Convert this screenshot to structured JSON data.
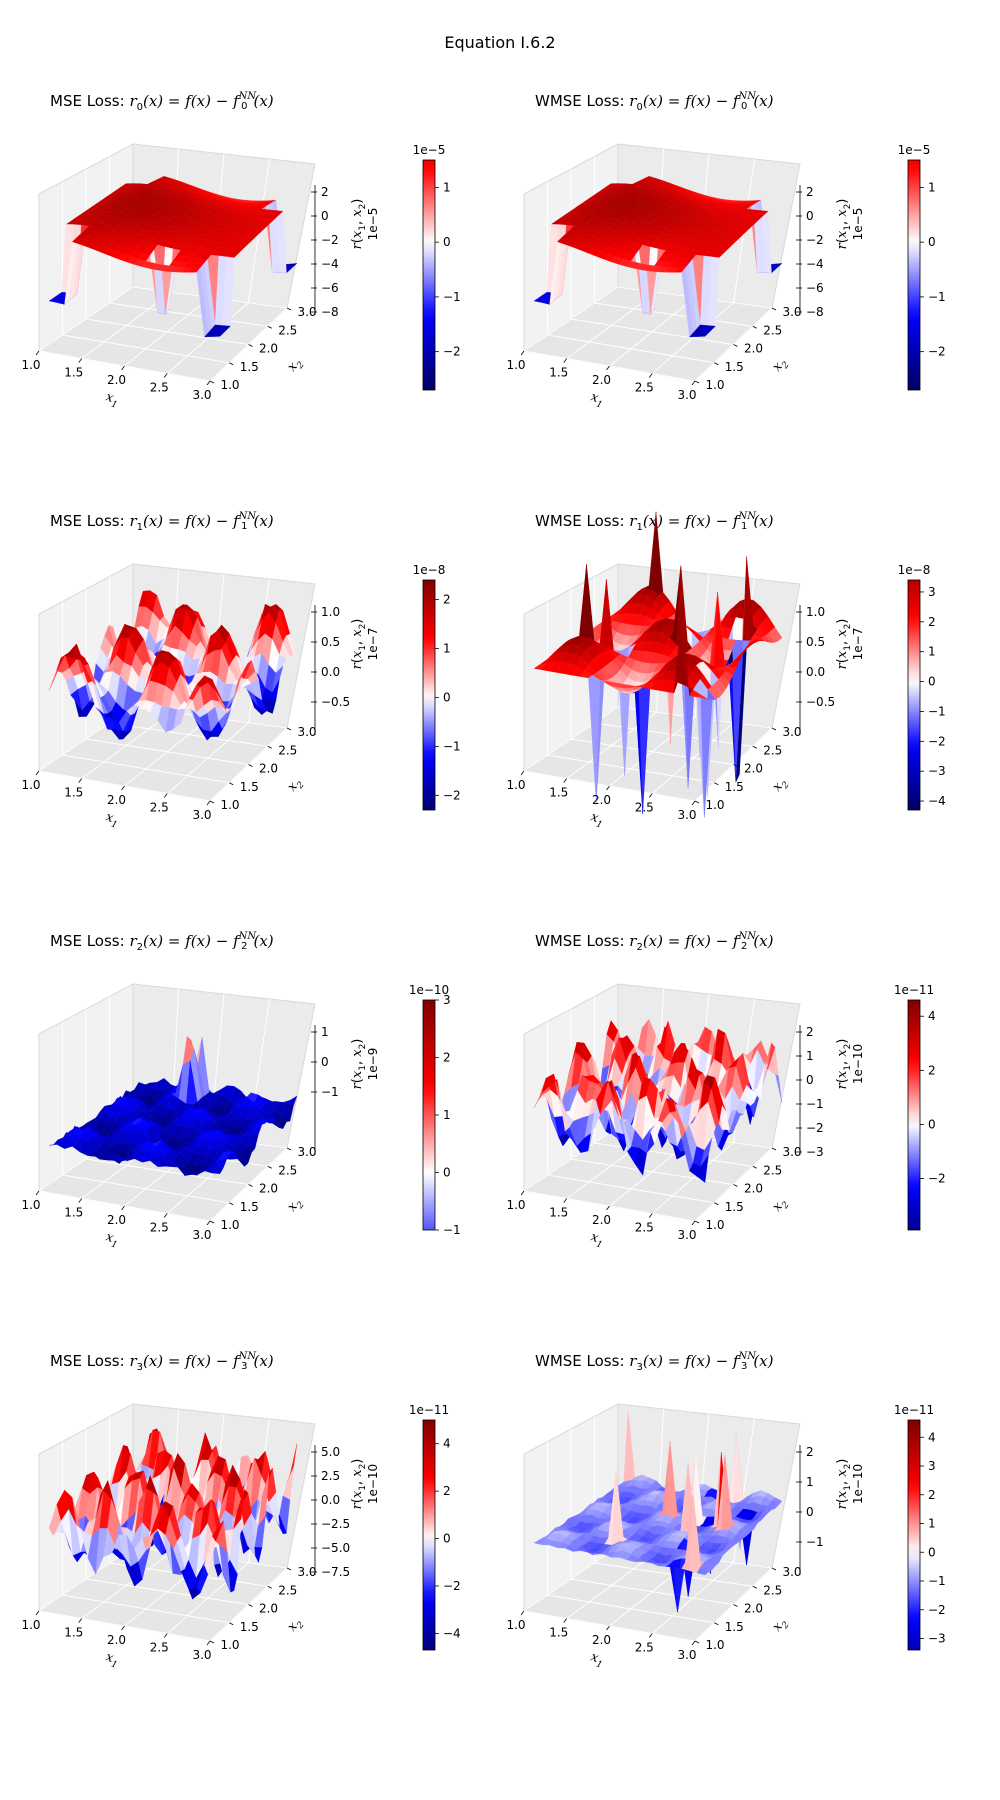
{
  "figure": {
    "title": "Equation I.6.2"
  },
  "chart_data": [
    {
      "type": "surface",
      "title": {
        "loss": "MSE Loss: ",
        "fn": "r",
        "sub": "0",
        "body": "(x) = f(x) − f",
        "supNN": "NN",
        "subNN": "0",
        "tail": "(x)"
      },
      "xlabel": "x1",
      "ylabel": "x2",
      "zlabel": "r(x1, x2)",
      "xlim": [
        1.0,
        3.0
      ],
      "ylim": [
        1.0,
        3.0
      ],
      "x_ticks": [
        "1.0",
        "1.5",
        "2.0",
        "2.5",
        "3.0"
      ],
      "y_ticks": [
        "1.0",
        "1.5",
        "2.0",
        "2.5",
        "3.0"
      ],
      "z_ticks": [
        "2",
        "0",
        "−2",
        "−4",
        "−6",
        "−8"
      ],
      "z_offset": "1e−5",
      "colorbar": {
        "offset": "1e−5",
        "ticks": [
          "1",
          "0",
          "−1",
          "−2"
        ],
        "range": [
          -2.7,
          1.5
        ],
        "tick_values": [
          1,
          0,
          -1,
          -2
        ],
        "colormap": "seismic"
      },
      "surface": "mostly-positive red undulating surface with blue dips at corners"
    },
    {
      "type": "surface",
      "title": {
        "loss": "WMSE Loss: ",
        "fn": "r",
        "sub": "0",
        "body": "(x) = f(x) − f",
        "supNN": "NN",
        "subNN": "0",
        "tail": "(x)"
      },
      "xlabel": "x1",
      "ylabel": "x2",
      "zlabel": "r(x1, x2)",
      "xlim": [
        1.0,
        3.0
      ],
      "ylim": [
        1.0,
        3.0
      ],
      "x_ticks": [
        "1.0",
        "1.5",
        "2.0",
        "2.5",
        "3.0"
      ],
      "y_ticks": [
        "1.0",
        "1.5",
        "2.0",
        "2.5",
        "3.0"
      ],
      "z_ticks": [
        "2",
        "0",
        "−2",
        "−4",
        "−6",
        "−8"
      ],
      "z_offset": "1e−5",
      "colorbar": {
        "offset": "1e−5",
        "ticks": [
          "1",
          "0",
          "−1",
          "−2"
        ],
        "range": [
          -2.7,
          1.5
        ],
        "tick_values": [
          1,
          0,
          -1,
          -2
        ],
        "colormap": "seismic"
      },
      "surface": "mostly-positive red undulating surface with blue dips at corners"
    },
    {
      "type": "surface",
      "title": {
        "loss": "MSE Loss: ",
        "fn": "r",
        "sub": "1",
        "body": "(x) = f(x) − f",
        "supNN": "NN",
        "subNN": "1",
        "tail": "(x)"
      },
      "xlabel": "x1",
      "ylabel": "x2",
      "zlabel": "r(x1, x2)",
      "xlim": [
        1.0,
        3.0
      ],
      "ylim": [
        1.0,
        3.0
      ],
      "x_ticks": [
        "1.0",
        "1.5",
        "2.0",
        "2.5",
        "3.0"
      ],
      "y_ticks": [
        "1.0",
        "1.5",
        "2.0",
        "2.5",
        "3.0"
      ],
      "z_ticks": [
        "1.0",
        "0.5",
        "0.0",
        "−0.5"
      ],
      "z_offset": "1e−7",
      "colorbar": {
        "offset": "1e−8",
        "ticks": [
          "2",
          "1",
          "0",
          "−1",
          "−2"
        ],
        "range": [
          -2.3,
          2.4
        ],
        "tick_values": [
          2,
          1,
          0,
          -1,
          -2
        ],
        "colormap": "seismic"
      },
      "surface": "mixed red/blue oscillating surface"
    },
    {
      "type": "surface",
      "title": {
        "loss": "WMSE Loss: ",
        "fn": "r",
        "sub": "1",
        "body": "(x) = f(x) − f",
        "supNN": "NN",
        "subNN": "1",
        "tail": "(x)"
      },
      "xlabel": "x1",
      "ylabel": "x2",
      "zlabel": "r(x1, x2)",
      "xlim": [
        1.0,
        3.0
      ],
      "ylim": [
        1.0,
        3.0
      ],
      "x_ticks": [
        "1.0",
        "1.5",
        "2.0",
        "2.5",
        "3.0"
      ],
      "y_ticks": [
        "1.0",
        "1.5",
        "2.0",
        "2.5",
        "3.0"
      ],
      "z_ticks": [
        "1.0",
        "0.5",
        "0.0",
        "−0.5"
      ],
      "z_offset": "1e−7",
      "colorbar": {
        "offset": "1e−8",
        "ticks": [
          "3",
          "2",
          "1",
          "0",
          "−1",
          "−2",
          "−3",
          "−4"
        ],
        "range": [
          -4.3,
          3.4
        ],
        "tick_values": [
          3,
          2,
          1,
          0,
          -1,
          -2,
          -3,
          -4
        ],
        "colormap": "seismic"
      },
      "surface": "mostly red surface with sharp spikes"
    },
    {
      "type": "surface",
      "title": {
        "loss": "MSE Loss: ",
        "fn": "r",
        "sub": "2",
        "body": "(x) = f(x) − f",
        "supNN": "NN",
        "subNN": "2",
        "tail": "(x)"
      },
      "xlabel": "x1",
      "ylabel": "x2",
      "zlabel": "r(x1, x2)",
      "xlim": [
        1.0,
        3.0
      ],
      "ylim": [
        1.0,
        3.0
      ],
      "x_ticks": [
        "1.0",
        "1.5",
        "2.0",
        "2.5",
        "3.0"
      ],
      "y_ticks": [
        "1.0",
        "1.5",
        "2.0",
        "2.5",
        "3.0"
      ],
      "z_ticks": [
        "1",
        "0",
        "−1"
      ],
      "z_offset": "1e−9",
      "colorbar": {
        "offset": "1e−10",
        "ticks": [
          "3",
          "2",
          "1",
          "0",
          "−1"
        ],
        "range": [
          -1.0,
          3.0
        ],
        "tick_values": [
          3,
          2,
          1,
          0,
          -1
        ],
        "colormap": "seismic"
      },
      "surface": "uniformly blue rough surface"
    },
    {
      "type": "surface",
      "title": {
        "loss": "WMSE Loss: ",
        "fn": "r",
        "sub": "2",
        "body": "(x) = f(x) − f",
        "supNN": "NN",
        "subNN": "2",
        "tail": "(x)"
      },
      "xlabel": "x1",
      "ylabel": "x2",
      "zlabel": "r(x1, x2)",
      "xlim": [
        1.0,
        3.0
      ],
      "ylim": [
        1.0,
        3.0
      ],
      "x_ticks": [
        "1.0",
        "1.5",
        "2.0",
        "2.5",
        "3.0"
      ],
      "y_ticks": [
        "1.0",
        "1.5",
        "2.0",
        "2.5",
        "3.0"
      ],
      "z_ticks": [
        "2",
        "1",
        "0",
        "−1",
        "−2",
        "−3"
      ],
      "z_offset": "1e−10",
      "colorbar": {
        "offset": "1e−11",
        "ticks": [
          "4",
          "2",
          "0",
          "−2"
        ],
        "range": [
          -3.9,
          4.6
        ],
        "tick_values": [
          4,
          2,
          0,
          -2
        ],
        "colormap": "seismic"
      },
      "surface": "noisy red/blue spiky surface"
    },
    {
      "type": "surface",
      "title": {
        "loss": "MSE Loss: ",
        "fn": "r",
        "sub": "3",
        "body": "(x) = f(x) − f",
        "supNN": "NN",
        "subNN": "3",
        "tail": "(x)"
      },
      "xlabel": "x1",
      "ylabel": "x2",
      "zlabel": "r(x1, x2)",
      "xlim": [
        1.0,
        3.0
      ],
      "ylim": [
        1.0,
        3.0
      ],
      "x_ticks": [
        "1.0",
        "1.5",
        "2.0",
        "2.5",
        "3.0"
      ],
      "y_ticks": [
        "1.0",
        "1.5",
        "2.0",
        "2.5",
        "3.0"
      ],
      "z_ticks": [
        "5.0",
        "2.5",
        "0.0",
        "−2.5",
        "−5.0",
        "−7.5"
      ],
      "z_offset": "1e−10",
      "colorbar": {
        "offset": "1e−11",
        "ticks": [
          "4",
          "2",
          "0",
          "−2",
          "−4"
        ],
        "range": [
          -4.7,
          5.0
        ],
        "tick_values": [
          4,
          2,
          0,
          -2,
          -4
        ],
        "colormap": "seismic"
      },
      "surface": "noisy mixed red/blue surface"
    },
    {
      "type": "surface",
      "title": {
        "loss": "WMSE Loss: ",
        "fn": "r",
        "sub": "3",
        "body": "(x) = f(x) − f",
        "supNN": "NN",
        "subNN": "3",
        "tail": "(x)"
      },
      "xlabel": "x1",
      "ylabel": "x2",
      "zlabel": "r(x1, x2)",
      "xlim": [
        1.0,
        3.0
      ],
      "ylim": [
        1.0,
        3.0
      ],
      "x_ticks": [
        "1.0",
        "1.5",
        "2.0",
        "2.5",
        "3.0"
      ],
      "y_ticks": [
        "1.0",
        "1.5",
        "2.0",
        "2.5",
        "3.0"
      ],
      "z_ticks": [
        "2",
        "1",
        "0",
        "−1"
      ],
      "z_offset": "1e−10",
      "colorbar": {
        "offset": "1e−11",
        "ticks": [
          "4",
          "3",
          "2",
          "1",
          "0",
          "−1",
          "−2",
          "−3"
        ],
        "range": [
          -3.4,
          4.6
        ],
        "tick_values": [
          4,
          3,
          2,
          1,
          0,
          -1,
          -2,
          -3
        ],
        "colormap": "seismic"
      },
      "surface": "light blue surface with a few red/blue spikes"
    }
  ]
}
